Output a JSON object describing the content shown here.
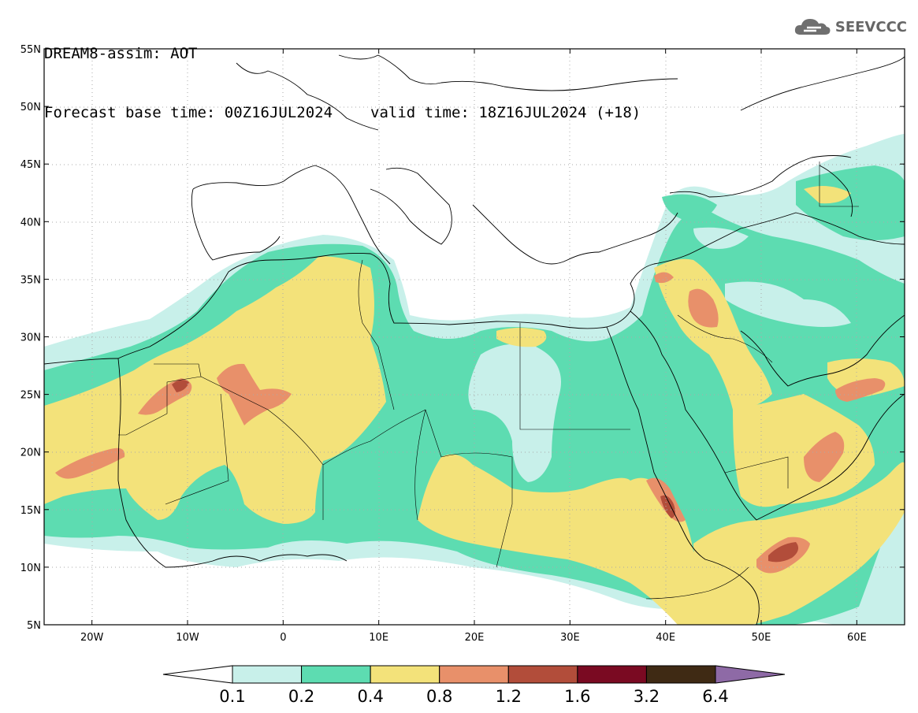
{
  "header": {
    "title": "DREAM8-assim: AOT",
    "base_time": "Forecast base time: 00Z16JUL2024",
    "valid_time": "valid time: 18Z16JUL2024 (+18)"
  },
  "logo": {
    "icon": "cloud-icon",
    "text": "SEEVCCC"
  },
  "map": {
    "lat_labels": [
      "55N",
      "50N",
      "45N",
      "40N",
      "35N",
      "30N",
      "25N",
      "20N",
      "15N",
      "10N",
      "5N"
    ],
    "lon_labels": [
      "20W",
      "10W",
      "0",
      "10E",
      "20E",
      "30E",
      "40E",
      "50E",
      "60E"
    ],
    "lat_range": [
      5,
      55
    ],
    "lon_range": [
      -25,
      65
    ]
  },
  "legend": {
    "labels": [
      "0.1",
      "0.2",
      "0.4",
      "0.8",
      "1.2",
      "1.6",
      "3.2",
      "6.4"
    ],
    "colors": [
      "#c8f0ea",
      "#5ddcb1",
      "#f3e27a",
      "#e8906a",
      "#b24d3a",
      "#7a0a22",
      "#3f2a14",
      "#8e6aa6"
    ]
  },
  "colors": {
    "background": "#ffffff",
    "land_outline": "#000000",
    "grid": "#aaaaaa"
  }
}
